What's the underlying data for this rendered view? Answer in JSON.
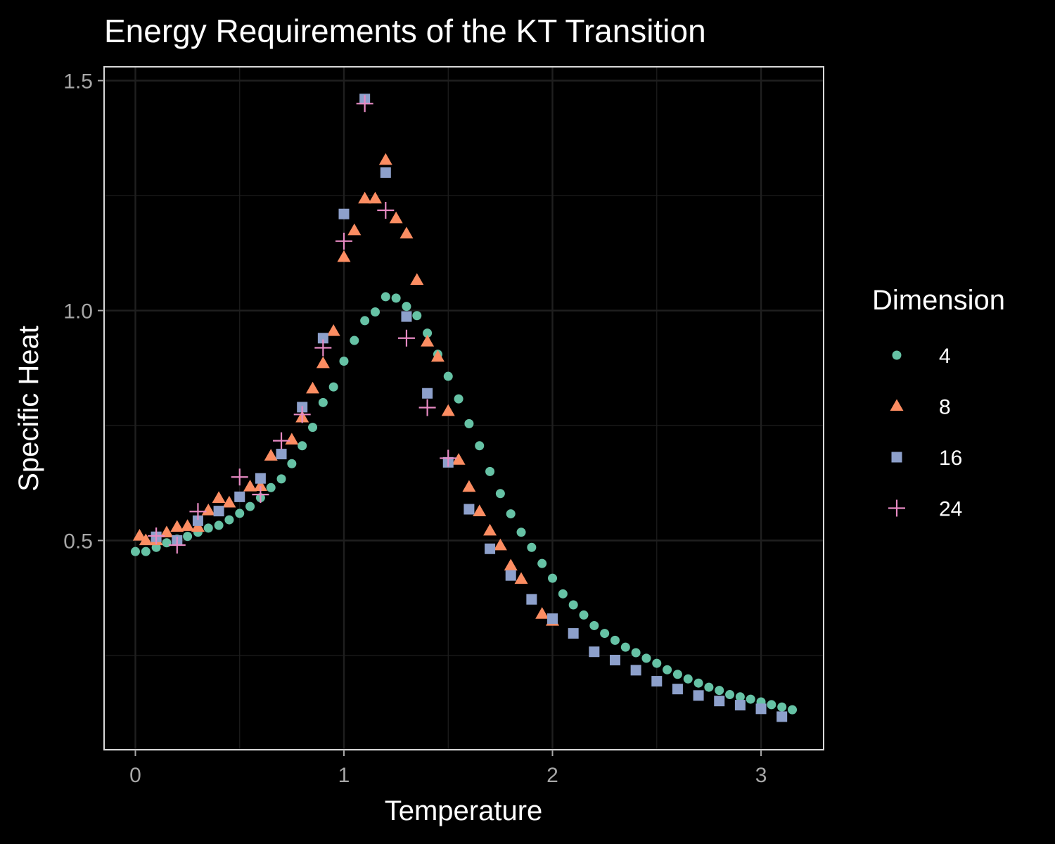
{
  "chart_data": {
    "type": "scatter",
    "title": "Energy Requirements of the KT Transition",
    "xlabel": "Temperature",
    "ylabel": "Specific Heat",
    "xlim": [
      -0.15,
      3.3
    ],
    "ylim": [
      0.045,
      1.53
    ],
    "x_ticks": [
      0,
      1,
      2,
      3
    ],
    "x_tick_labels": [
      "0",
      "1",
      "2",
      "3"
    ],
    "y_ticks": [
      0.5,
      1.0,
      1.5
    ],
    "y_tick_labels": [
      "0.5",
      "1.0",
      "1.5"
    ],
    "x_minor_gridlines": [
      0.5,
      1.5,
      2.5
    ],
    "y_minor_gridlines": [
      0.25,
      0.75,
      1.25
    ],
    "grid": true,
    "background": "#000000",
    "panel_border_color": "#d9d9d9",
    "gridline_color": "#1f1f1f",
    "legend": {
      "title": "Dimension",
      "position": "right"
    },
    "series": [
      {
        "name": "4",
        "shape": "circle",
        "color": "#66c2a5",
        "points": [
          [
            0,
            0.476
          ],
          [
            0.05,
            0.476
          ],
          [
            0.1,
            0.485
          ],
          [
            0.15,
            0.495
          ],
          [
            0.2,
            0.503
          ],
          [
            0.25,
            0.509
          ],
          [
            0.3,
            0.518
          ],
          [
            0.35,
            0.527
          ],
          [
            0.4,
            0.533
          ],
          [
            0.45,
            0.545
          ],
          [
            0.5,
            0.559
          ],
          [
            0.55,
            0.574
          ],
          [
            0.6,
            0.593
          ],
          [
            0.65,
            0.615
          ],
          [
            0.7,
            0.634
          ],
          [
            0.75,
            0.667
          ],
          [
            0.8,
            0.706
          ],
          [
            0.85,
            0.746
          ],
          [
            0.9,
            0.8
          ],
          [
            0.95,
            0.834
          ],
          [
            1.0,
            0.89
          ],
          [
            1.05,
            0.935
          ],
          [
            1.1,
            0.978
          ],
          [
            1.15,
            0.997
          ],
          [
            1.2,
            1.03
          ],
          [
            1.25,
            1.027
          ],
          [
            1.3,
            1.009
          ],
          [
            1.35,
            0.989
          ],
          [
            1.4,
            0.951
          ],
          [
            1.45,
            0.905
          ],
          [
            1.5,
            0.857
          ],
          [
            1.55,
            0.808
          ],
          [
            1.6,
            0.754
          ],
          [
            1.65,
            0.706
          ],
          [
            1.7,
            0.65
          ],
          [
            1.75,
            0.602
          ],
          [
            1.8,
            0.558
          ],
          [
            1.85,
            0.518
          ],
          [
            1.9,
            0.485
          ],
          [
            1.95,
            0.45
          ],
          [
            2.0,
            0.418
          ],
          [
            2.05,
            0.384
          ],
          [
            2.1,
            0.36
          ],
          [
            2.15,
            0.338
          ],
          [
            2.2,
            0.315
          ],
          [
            2.25,
            0.298
          ],
          [
            2.3,
            0.283
          ],
          [
            2.35,
            0.268
          ],
          [
            2.4,
            0.256
          ],
          [
            2.45,
            0.244
          ],
          [
            2.5,
            0.233
          ],
          [
            2.55,
            0.219
          ],
          [
            2.6,
            0.209
          ],
          [
            2.65,
            0.199
          ],
          [
            2.7,
            0.19
          ],
          [
            2.75,
            0.181
          ],
          [
            2.8,
            0.174
          ],
          [
            2.85,
            0.165
          ],
          [
            2.9,
            0.16
          ],
          [
            2.95,
            0.155
          ],
          [
            3.0,
            0.149
          ],
          [
            3.05,
            0.143
          ],
          [
            3.1,
            0.138
          ],
          [
            3.15,
            0.132
          ]
        ]
      },
      {
        "name": "8",
        "shape": "triangle",
        "color": "#fc8d62",
        "points": [
          [
            0.02,
            0.51
          ],
          [
            0.05,
            0.5
          ],
          [
            0.1,
            0.5
          ],
          [
            0.15,
            0.517
          ],
          [
            0.2,
            0.529
          ],
          [
            0.25,
            0.531
          ],
          [
            0.3,
            0.529
          ],
          [
            0.35,
            0.565
          ],
          [
            0.4,
            0.592
          ],
          [
            0.45,
            0.582
          ],
          [
            0.55,
            0.617
          ],
          [
            0.6,
            0.618
          ],
          [
            0.65,
            0.684
          ],
          [
            0.75,
            0.719
          ],
          [
            0.8,
            0.767
          ],
          [
            0.85,
            0.83
          ],
          [
            0.9,
            0.885
          ],
          [
            0.95,
            0.955
          ],
          [
            1.0,
            1.116
          ],
          [
            1.05,
            1.174
          ],
          [
            1.1,
            1.243
          ],
          [
            1.15,
            1.243
          ],
          [
            1.2,
            1.327
          ],
          [
            1.25,
            1.2
          ],
          [
            1.3,
            1.167
          ],
          [
            1.35,
            1.066
          ],
          [
            1.4,
            0.932
          ],
          [
            1.45,
            0.899
          ],
          [
            1.5,
            0.781
          ],
          [
            1.55,
            0.675
          ],
          [
            1.6,
            0.616
          ],
          [
            1.65,
            0.563
          ],
          [
            1.7,
            0.521
          ],
          [
            1.75,
            0.489
          ],
          [
            1.8,
            0.445
          ],
          [
            1.85,
            0.416
          ],
          [
            1.95,
            0.34
          ],
          [
            2.0,
            0.325
          ]
        ]
      },
      {
        "name": "16",
        "shape": "square",
        "color": "#8da0cb",
        "points": [
          [
            0.1,
            0.508
          ],
          [
            0.2,
            0.5
          ],
          [
            0.3,
            0.543
          ],
          [
            0.4,
            0.564
          ],
          [
            0.5,
            0.595
          ],
          [
            0.6,
            0.635
          ],
          [
            0.7,
            0.688
          ],
          [
            0.8,
            0.79
          ],
          [
            0.9,
            0.94
          ],
          [
            1.0,
            1.21
          ],
          [
            1.1,
            1.46
          ],
          [
            1.2,
            1.3
          ],
          [
            1.3,
            0.987
          ],
          [
            1.4,
            0.82
          ],
          [
            1.5,
            0.67
          ],
          [
            1.6,
            0.568
          ],
          [
            1.7,
            0.482
          ],
          [
            1.8,
            0.424
          ],
          [
            1.9,
            0.372
          ],
          [
            2.0,
            0.33
          ],
          [
            2.1,
            0.298
          ],
          [
            2.2,
            0.258
          ],
          [
            2.3,
            0.24
          ],
          [
            2.4,
            0.218
          ],
          [
            2.5,
            0.194
          ],
          [
            2.6,
            0.177
          ],
          [
            2.7,
            0.163
          ],
          [
            2.8,
            0.151
          ],
          [
            2.9,
            0.142
          ],
          [
            3.0,
            0.134
          ],
          [
            3.1,
            0.117
          ]
        ]
      },
      {
        "name": "24",
        "shape": "plus",
        "color": "#e78ac3",
        "points": [
          [
            0.1,
            0.51
          ],
          [
            0.2,
            0.49
          ],
          [
            0.3,
            0.563
          ],
          [
            0.5,
            0.638
          ],
          [
            0.6,
            0.6
          ],
          [
            0.7,
            0.717
          ],
          [
            0.8,
            0.774
          ],
          [
            0.9,
            0.919
          ],
          [
            1.0,
            1.151
          ],
          [
            1.1,
            1.45
          ],
          [
            1.2,
            1.218
          ],
          [
            1.3,
            0.94
          ],
          [
            1.4,
            0.789
          ],
          [
            1.5,
            0.679
          ]
        ]
      }
    ]
  }
}
